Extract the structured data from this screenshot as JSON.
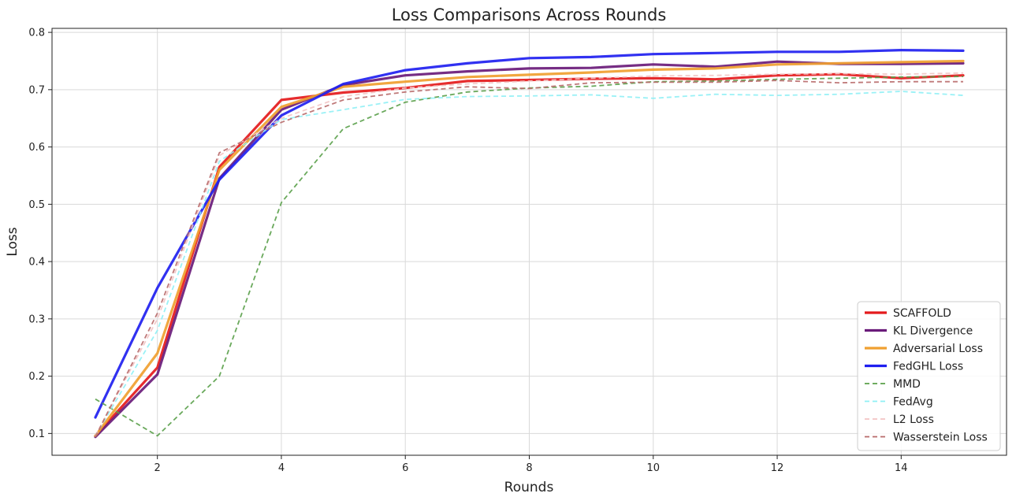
{
  "chart_data": {
    "type": "line",
    "title": "Loss Comparisons Across Rounds",
    "xlabel": "Rounds",
    "ylabel": "Loss",
    "xlim": [
      0.3,
      15.7
    ],
    "ylim": [
      0.062,
      0.807
    ],
    "xticks": [
      2,
      4,
      6,
      8,
      10,
      12,
      14
    ],
    "yticks": [
      0.1,
      0.2,
      0.3,
      0.4,
      0.5,
      0.6,
      0.7,
      0.8
    ],
    "grid": true,
    "legend_position": "lower-right",
    "x": [
      1,
      2,
      3,
      4,
      5,
      6,
      7,
      8,
      9,
      10,
      11,
      12,
      13,
      14,
      15
    ],
    "series": [
      {
        "name": "SCAFFOLD",
        "color": "#e41a1c",
        "style": "solid",
        "values": [
          0.096,
          0.215,
          0.565,
          0.682,
          0.695,
          0.703,
          0.715,
          0.717,
          0.719,
          0.72,
          0.718,
          0.725,
          0.727,
          0.72,
          0.725
        ]
      },
      {
        "name": "KL Divergence",
        "color": "#6a1b7a",
        "style": "solid",
        "values": [
          0.094,
          0.203,
          0.545,
          0.665,
          0.708,
          0.725,
          0.732,
          0.737,
          0.738,
          0.744,
          0.74,
          0.749,
          0.745,
          0.745,
          0.746
        ]
      },
      {
        "name": "Adversarial Loss",
        "color": "#f0a030",
        "style": "solid",
        "values": [
          0.096,
          0.24,
          0.56,
          0.67,
          0.705,
          0.714,
          0.722,
          0.726,
          0.73,
          0.735,
          0.737,
          0.744,
          0.746,
          0.748,
          0.75
        ]
      },
      {
        "name": "FedGHL Loss",
        "color": "#1f1ff0",
        "style": "solid",
        "values": [
          0.128,
          0.354,
          0.543,
          0.655,
          0.71,
          0.734,
          0.746,
          0.755,
          0.757,
          0.762,
          0.764,
          0.766,
          0.766,
          0.769,
          0.768
        ]
      },
      {
        "name": "MMD",
        "color": "#5aa04a",
        "style": "dashed",
        "values": [
          0.16,
          0.096,
          0.2,
          0.503,
          0.632,
          0.678,
          0.696,
          0.703,
          0.706,
          0.714,
          0.715,
          0.718,
          0.72,
          0.722,
          0.723
        ]
      },
      {
        "name": "FedAvg",
        "color": "#8ff0f5",
        "style": "dashed",
        "values": [
          0.096,
          0.28,
          0.575,
          0.648,
          0.665,
          0.683,
          0.688,
          0.689,
          0.691,
          0.685,
          0.692,
          0.69,
          0.692,
          0.697,
          0.69
        ]
      },
      {
        "name": "L2 Loss",
        "color": "#f2c4c4",
        "style": "dashed",
        "values": [
          0.096,
          0.3,
          0.585,
          0.65,
          0.688,
          0.703,
          0.71,
          0.715,
          0.72,
          0.724,
          0.725,
          0.727,
          0.728,
          0.727,
          0.729
        ]
      },
      {
        "name": "Wasserstein Loss",
        "color": "#b86a6a",
        "style": "dashed",
        "values": [
          0.094,
          0.31,
          0.59,
          0.643,
          0.682,
          0.696,
          0.705,
          0.702,
          0.712,
          0.713,
          0.713,
          0.716,
          0.712,
          0.714,
          0.714
        ]
      }
    ]
  }
}
